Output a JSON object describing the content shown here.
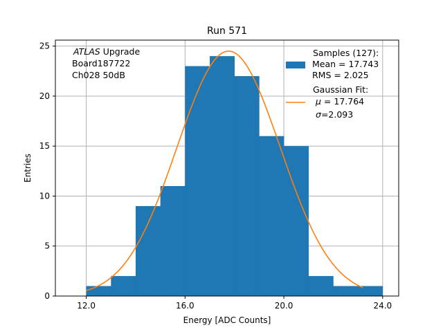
{
  "chart_data": {
    "type": "bar",
    "title": "Run 571",
    "xlabel": "Energy [ADC Counts]",
    "ylabel": "Entries",
    "xlim": [
      10.75,
      24.65
    ],
    "ylim": [
      0,
      25.6
    ],
    "grid": true,
    "bins": {
      "edges": [
        12,
        13,
        14,
        15,
        16,
        17,
        18,
        19,
        20,
        21,
        22,
        23,
        24
      ],
      "counts": [
        1,
        2,
        9,
        11,
        23,
        24,
        22,
        16,
        15,
        2,
        1,
        1
      ]
    },
    "x_ticks": [
      {
        "value": 12,
        "label": "12.0"
      },
      {
        "value": 16,
        "label": "16.0"
      },
      {
        "value": 20,
        "label": "20.0"
      },
      {
        "value": 24,
        "label": "24.0"
      }
    ],
    "y_ticks": [
      {
        "value": 0,
        "label": "0"
      },
      {
        "value": 5,
        "label": "5"
      },
      {
        "value": 10,
        "label": "10"
      },
      {
        "value": 15,
        "label": "15"
      },
      {
        "value": 20,
        "label": "20"
      },
      {
        "value": 25,
        "label": "25"
      }
    ],
    "fit": {
      "type": "gaussian",
      "mu": 17.764,
      "sigma": 2.093,
      "amplitude": 24.5,
      "x_range": [
        12,
        23.2
      ]
    },
    "colors": {
      "histogram": "#1f77b4",
      "fit": "#ff7f0e",
      "grid": "#b0b0b0"
    },
    "annotation": {
      "italic": "ATLAS",
      "line1_rest": " Upgrade",
      "line2": " Board187722",
      "line3": " Ch028 50dB"
    },
    "legend": {
      "placement": "top-right",
      "samples": {
        "title": "Samples (127):",
        "mean": " Mean = 17.743",
        "rms": " RMS = 2.025"
      },
      "fit": {
        "title": "Gaussian Fit:",
        "mu_symbol": "μ",
        "mu_rest": " = 17.764",
        "sigma_symbol": "σ",
        "sigma_rest": "=2.093"
      }
    }
  }
}
